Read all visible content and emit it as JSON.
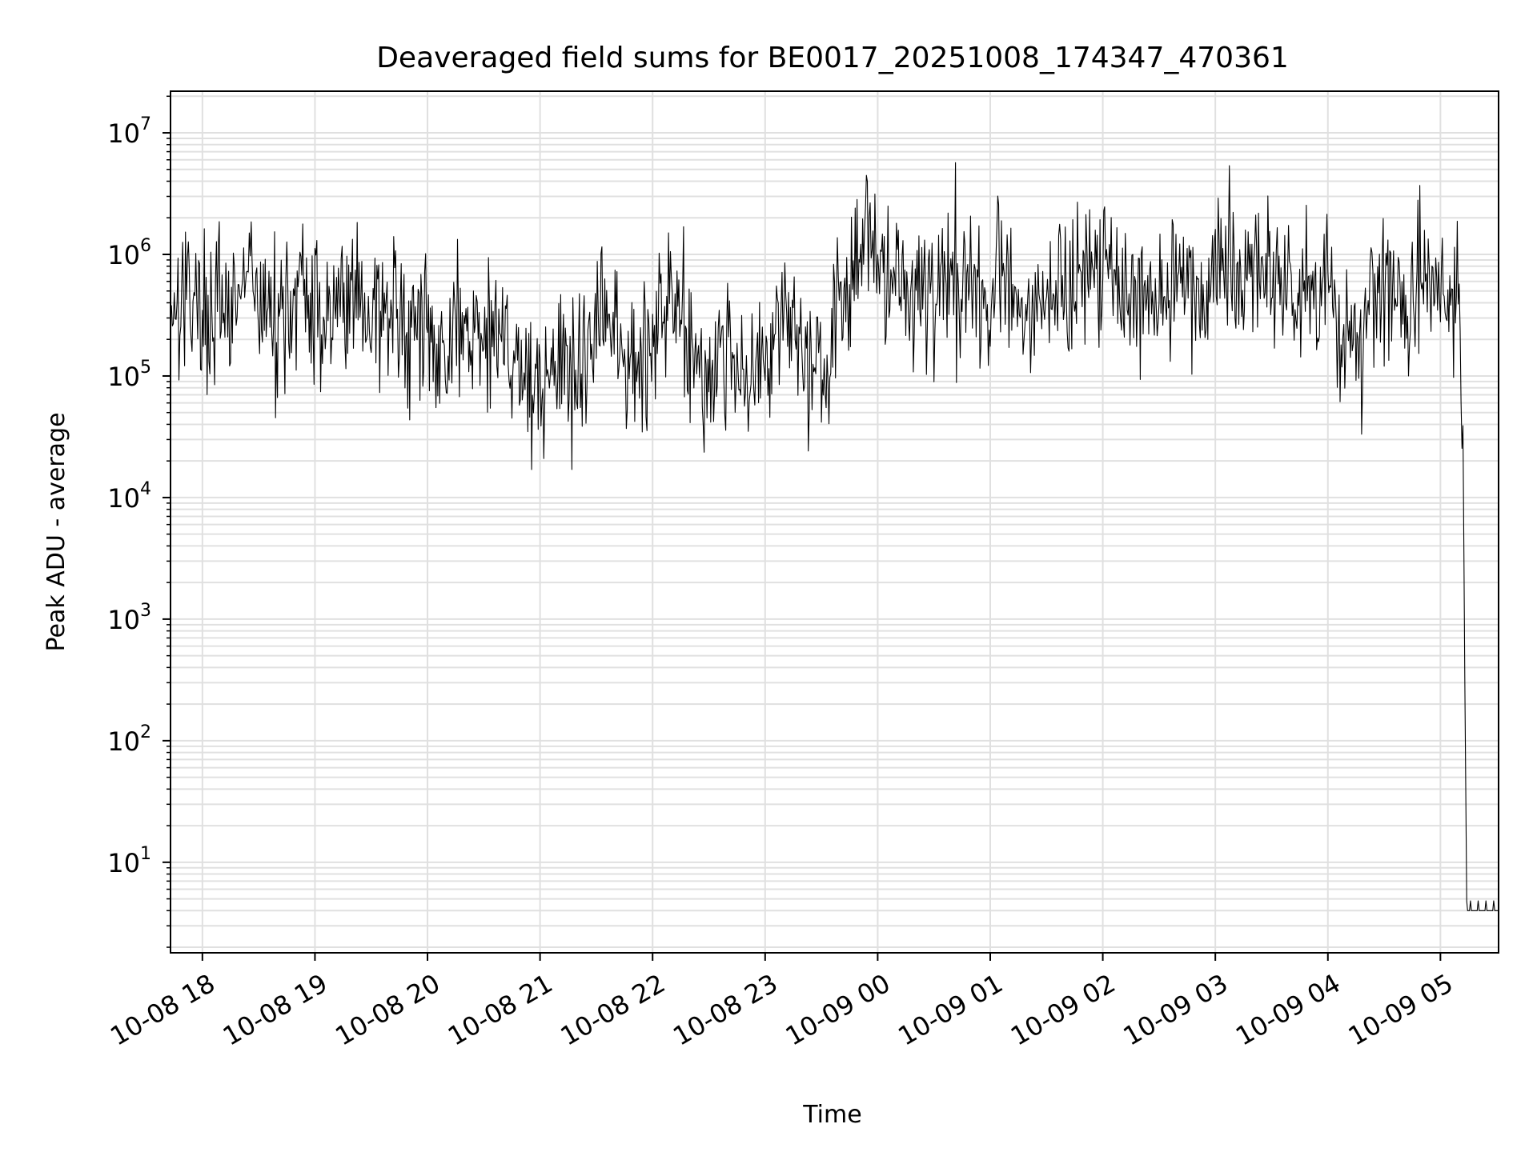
{
  "chart_data": {
    "type": "line",
    "title": "Deaveraged field sums for BE0017_20251008_174347_470361",
    "xlabel": "Time",
    "ylabel": "Peak ADU - average",
    "y_scale": "log",
    "ylim": [
      1.8,
      22000000
    ],
    "xlim": [
      "2025-10-08 17:43",
      "2025-10-09 05:31"
    ],
    "grid": true,
    "legend": "none",
    "line_color": "#000000",
    "grid_color": "#e0e0e0",
    "x_ticks": [
      {
        "t": "2025-10-08 18:00",
        "label": "10-08 18"
      },
      {
        "t": "2025-10-08 19:00",
        "label": "10-08 19"
      },
      {
        "t": "2025-10-08 20:00",
        "label": "10-08 20"
      },
      {
        "t": "2025-10-08 21:00",
        "label": "10-08 21"
      },
      {
        "t": "2025-10-08 22:00",
        "label": "10-08 22"
      },
      {
        "t": "2025-10-08 23:00",
        "label": "10-08 23"
      },
      {
        "t": "2025-10-09 00:00",
        "label": "10-09 00"
      },
      {
        "t": "2025-10-09 01:00",
        "label": "10-09 01"
      },
      {
        "t": "2025-10-09 02:00",
        "label": "10-09 02"
      },
      {
        "t": "2025-10-09 03:00",
        "label": "10-09 03"
      },
      {
        "t": "2025-10-09 04:00",
        "label": "10-09 04"
      },
      {
        "t": "2025-10-09 05:00",
        "label": "10-09 05"
      }
    ],
    "y_ticks": [
      {
        "value": 10,
        "base": "10",
        "exp": "1"
      },
      {
        "value": 100,
        "base": "10",
        "exp": "2"
      },
      {
        "value": 1000,
        "base": "10",
        "exp": "3"
      },
      {
        "value": 10000,
        "base": "10",
        "exp": "4"
      },
      {
        "value": 100000,
        "base": "10",
        "exp": "5"
      },
      {
        "value": 1000000,
        "base": "10",
        "exp": "6"
      },
      {
        "value": 10000000,
        "base": "10",
        "exp": "7"
      }
    ],
    "series": [
      {
        "x": [
          "2025-10-08 17:43",
          "2025-10-08 17:50",
          "2025-10-08 17:55",
          "2025-10-08 18:00",
          "2025-10-08 18:10",
          "2025-10-08 18:20",
          "2025-10-08 18:25",
          "2025-10-08 18:30",
          "2025-10-08 18:40",
          "2025-10-08 18:50",
          "2025-10-08 19:00",
          "2025-10-08 19:10",
          "2025-10-08 19:20",
          "2025-10-08 19:30",
          "2025-10-08 19:40",
          "2025-10-08 19:50",
          "2025-10-08 20:00",
          "2025-10-08 20:10",
          "2025-10-08 20:20",
          "2025-10-08 20:30",
          "2025-10-08 20:35",
          "2025-10-08 20:40",
          "2025-10-08 20:50",
          "2025-10-08 20:55",
          "2025-10-08 21:00",
          "2025-10-08 21:10",
          "2025-10-08 21:20",
          "2025-10-08 21:30",
          "2025-10-08 21:40",
          "2025-10-08 21:50",
          "2025-10-08 22:00",
          "2025-10-08 22:10",
          "2025-10-08 22:15",
          "2025-10-08 22:20",
          "2025-10-08 22:30",
          "2025-10-08 22:40",
          "2025-10-08 22:50",
          "2025-10-08 23:00",
          "2025-10-08 23:10",
          "2025-10-08 23:20",
          "2025-10-08 23:30",
          "2025-10-08 23:40",
          "2025-10-08 23:50",
          "2025-10-08 23:55",
          "2025-10-09 00:00",
          "2025-10-09 00:10",
          "2025-10-09 00:20",
          "2025-10-09 00:30",
          "2025-10-09 00:40",
          "2025-10-09 00:50",
          "2025-10-09 01:00",
          "2025-10-09 01:05",
          "2025-10-09 01:10",
          "2025-10-09 01:20",
          "2025-10-09 01:30",
          "2025-10-09 01:40",
          "2025-10-09 01:50",
          "2025-10-09 02:00",
          "2025-10-09 02:10",
          "2025-10-09 02:20",
          "2025-10-09 02:30",
          "2025-10-09 02:40",
          "2025-10-09 02:50",
          "2025-10-09 03:00",
          "2025-10-09 03:10",
          "2025-10-09 03:20",
          "2025-10-09 03:30",
          "2025-10-09 03:40",
          "2025-10-09 03:50",
          "2025-10-09 04:00",
          "2025-10-09 04:10",
          "2025-10-09 04:20",
          "2025-10-09 04:30",
          "2025-10-09 04:40",
          "2025-10-09 04:50",
          "2025-10-09 05:00",
          "2025-10-09 05:05",
          "2025-10-09 05:10",
          "2025-10-09 05:12",
          "2025-10-09 05:14",
          "2025-10-09 05:16",
          "2025-10-09 05:31"
        ],
        "y": [
          400000,
          600000,
          450000,
          350000,
          300000,
          400000,
          800000,
          350000,
          300000,
          500000,
          300000,
          400000,
          500000,
          350000,
          300000,
          220000,
          220000,
          180000,
          250000,
          200000,
          180000,
          250000,
          120000,
          80000,
          100000,
          120000,
          90000,
          250000,
          200000,
          90000,
          300000,
          350000,
          450000,
          150000,
          120000,
          150000,
          120000,
          150000,
          400000,
          150000,
          100000,
          300000,
          800000,
          2000000,
          900000,
          700000,
          500000,
          450000,
          800000,
          400000,
          300000,
          1000000,
          600000,
          350000,
          500000,
          600000,
          700000,
          550000,
          600000,
          500000,
          450000,
          650000,
          500000,
          700000,
          900000,
          800000,
          700000,
          500000,
          400000,
          600000,
          150000,
          300000,
          450000,
          500000,
          500000,
          600000,
          500000,
          500000,
          30000,
          4,
          4,
          4
        ]
      }
    ]
  }
}
